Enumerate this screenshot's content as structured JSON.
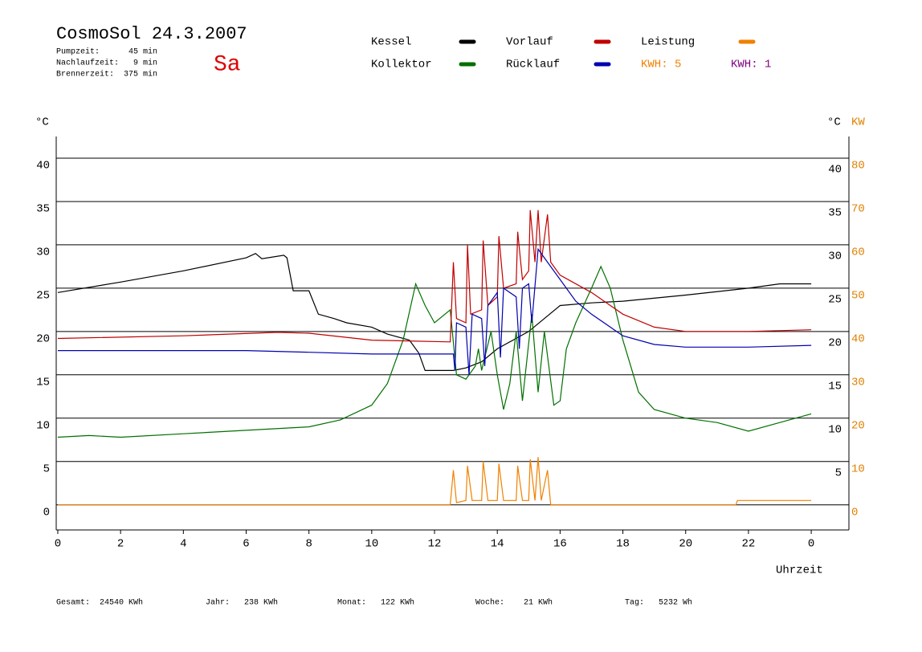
{
  "chart_data": {
    "type": "line",
    "title": "CosmoSol 24.3.2007",
    "info": [
      "Pumpzeit:      45 min",
      "Nachlaufzeit:   9 min",
      "Brennerzeit:  375 min"
    ],
    "weekday": "Sa",
    "y_label": "°C",
    "y_right_label": "°C",
    "y2_label": "KW",
    "x_label": "Uhrzeit",
    "kwh_labels": [
      {
        "text": "KWH: 5",
        "color": "#f08000"
      },
      {
        "text": "KWH: 1",
        "color": "#800080"
      }
    ],
    "footer": [
      "Gesamt:  24540 KWh",
      "Jahr:   238 KWh",
      "Monat:   122 KWh",
      "Woche:    21 KWh",
      "Tag:   5232 Wh"
    ],
    "xlim": [
      -0.05,
      25.2
    ],
    "xticks": [
      0,
      2,
      4,
      6,
      8,
      10,
      12,
      14,
      16,
      18,
      20,
      22,
      {
        "value": 24,
        "label": "0"
      }
    ],
    "ylim": [
      -2.9,
      42.5
    ],
    "yticks": [
      0,
      5,
      10,
      15,
      20,
      25,
      30,
      35,
      40
    ],
    "y_right_ticks": [
      5,
      10,
      15,
      20,
      25,
      30,
      35,
      40
    ],
    "y2lim": [
      -5.8,
      85
    ],
    "y2ticks": [
      0,
      10,
      20,
      30,
      40,
      50,
      60,
      70,
      80
    ],
    "grid": true,
    "series": [
      {
        "name": "Kessel",
        "color": "#000000",
        "x": [
          0,
          2,
          4,
          6,
          6.3,
          6.5,
          7.2,
          7.3,
          7.5,
          8,
          8.3,
          8.8,
          9.2,
          10,
          10.5,
          11.2,
          11.5,
          11.7,
          12.6,
          13,
          13.5,
          14,
          14.5,
          15,
          15.5,
          16,
          17,
          18,
          20,
          22,
          23,
          24
        ],
        "values": [
          24.5,
          25.7,
          27,
          28.5,
          29,
          28.4,
          28.8,
          28.5,
          24.7,
          24.7,
          22,
          21.5,
          21,
          20.5,
          19.7,
          19,
          17.5,
          15.5,
          15.5,
          15.8,
          16.5,
          18,
          19,
          20,
          21.5,
          23,
          23.3,
          23.5,
          24.2,
          25,
          25.5,
          25.5
        ]
      },
      {
        "name": "Kollektor",
        "color": "#007000",
        "x": [
          0,
          1,
          2,
          4,
          6,
          8,
          9,
          10,
          10.5,
          11,
          11.4,
          11.7,
          12,
          12.5,
          12.7,
          13,
          13.3,
          13.4,
          13.5,
          13.8,
          14,
          14.2,
          14.4,
          14.6,
          14.8,
          15.1,
          15.3,
          15.5,
          15.8,
          16,
          16.2,
          16.5,
          17,
          17.3,
          17.6,
          18,
          18.5,
          19,
          20,
          21,
          22,
          23,
          24
        ],
        "values": [
          7.8,
          8,
          7.8,
          8.2,
          8.6,
          9,
          9.8,
          11.5,
          14,
          19,
          25.5,
          23,
          21,
          22.5,
          15,
          14.5,
          16,
          18,
          15.5,
          20,
          15,
          11,
          14,
          20,
          12,
          22,
          13,
          20,
          11.5,
          12,
          18,
          21,
          25,
          27.5,
          25,
          19,
          13,
          11,
          10,
          9.5,
          8.5,
          9.5,
          10.5
        ]
      },
      {
        "name": "Vorlauf",
        "color": "#c00000",
        "x": [
          0,
          4,
          7,
          8,
          10,
          12.5,
          12.6,
          12.7,
          13,
          13.05,
          13.15,
          13.5,
          13.55,
          13.7,
          14,
          14.05,
          14.2,
          14.6,
          14.65,
          14.8,
          15,
          15.05,
          15.2,
          15.3,
          15.4,
          15.6,
          15.7,
          16,
          17,
          18,
          19,
          20,
          22,
          24
        ],
        "values": [
          19.2,
          19.5,
          19.9,
          19.8,
          19,
          18.8,
          28,
          21.5,
          21,
          30,
          22,
          22.5,
          30.5,
          23,
          24,
          31,
          25,
          25.5,
          31.5,
          26,
          27,
          34,
          28,
          34,
          28,
          33.5,
          28,
          26.5,
          24.5,
          22,
          20.5,
          20,
          20,
          20.2
        ]
      },
      {
        "name": "Rücklauf",
        "color": "#0000b0",
        "x": [
          0,
          6,
          8,
          10,
          12.6,
          12.65,
          12.7,
          13,
          13.1,
          13.2,
          13.5,
          13.6,
          13.7,
          14,
          14.1,
          14.2,
          14.6,
          14.7,
          14.8,
          15,
          15.1,
          15.3,
          15.6,
          16,
          16.5,
          17,
          18,
          19,
          20,
          22,
          24
        ],
        "values": [
          17.8,
          17.8,
          17.6,
          17.4,
          17.4,
          15.5,
          21,
          20.5,
          15,
          22,
          21.5,
          16,
          23,
          24.5,
          17,
          25,
          24,
          18,
          25,
          25.5,
          21,
          29.5,
          28,
          26,
          23.5,
          22,
          19.5,
          18.5,
          18.2,
          18.2,
          18.4
        ]
      },
      {
        "name": "Leistung",
        "color": "#f08000",
        "axis": "y2",
        "x": [
          0,
          12.5,
          12.6,
          12.7,
          13,
          13.05,
          13.2,
          13.5,
          13.55,
          13.7,
          14,
          14.05,
          14.2,
          14.6,
          14.65,
          14.8,
          15,
          15.05,
          15.2,
          15.3,
          15.4,
          15.6,
          15.7,
          21.6,
          21.65,
          24
        ],
        "values": [
          0,
          0,
          8,
          0.5,
          1,
          9,
          1,
          1,
          10,
          1,
          1,
          9.5,
          1,
          1,
          9,
          1,
          1,
          10.5,
          1,
          11,
          1,
          8,
          0,
          0,
          1,
          1
        ]
      }
    ]
  }
}
